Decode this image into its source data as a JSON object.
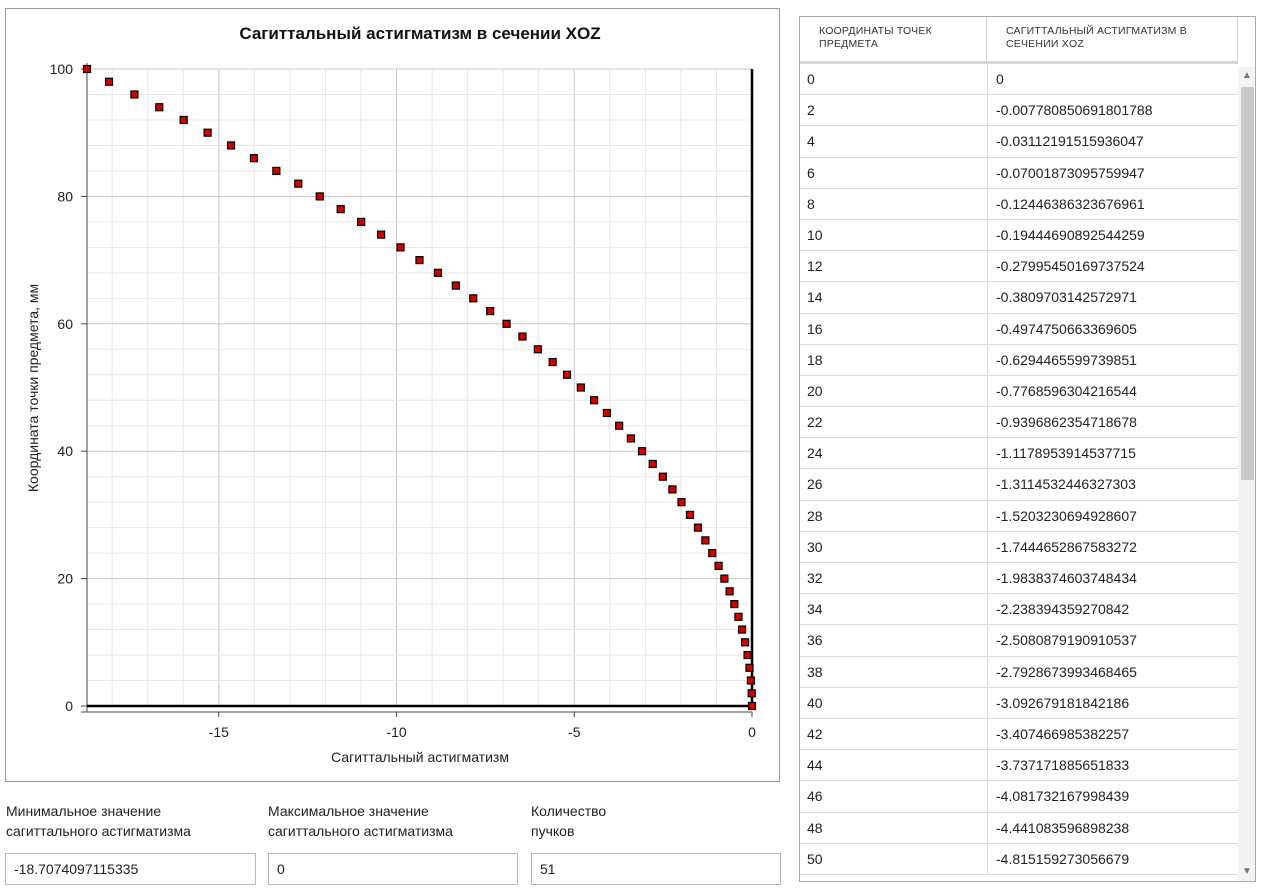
{
  "chart": {
    "title": "Сагиттальный астигматизм в сечении XOZ",
    "xlabel": "Сагиттальный астигматизм",
    "ylabel": "Координата точки предмета, мм"
  },
  "chart_data": {
    "type": "scatter",
    "title": "Сагиттальный астигматизм в сечении XOZ",
    "xlabel": "Сагиттальный астигматизм",
    "ylabel": "Координата точки предмета, мм",
    "xlim": [
      -18.7074097115335,
      0
    ],
    "ylim": [
      0,
      100
    ],
    "xticks": [
      -15,
      -10,
      -5,
      0
    ],
    "yticks": [
      0,
      20,
      40,
      60,
      80,
      100
    ],
    "grid": true,
    "marker_color": "#d40000",
    "points": [
      [
        0,
        0
      ],
      [
        -0.00778,
        2
      ],
      [
        -0.03112,
        4
      ],
      [
        -0.07002,
        6
      ],
      [
        -0.12446,
        8
      ],
      [
        -0.19445,
        10
      ],
      [
        -0.27995,
        12
      ],
      [
        -0.38097,
        14
      ],
      [
        -0.49748,
        16
      ],
      [
        -0.62945,
        18
      ],
      [
        -0.77686,
        20
      ],
      [
        -0.93969,
        22
      ],
      [
        -1.1179,
        24
      ],
      [
        -1.31145,
        26
      ],
      [
        -1.52032,
        28
      ],
      [
        -1.74447,
        30
      ],
      [
        -1.98384,
        32
      ],
      [
        -2.23839,
        34
      ],
      [
        -2.50809,
        36
      ],
      [
        -2.79287,
        38
      ],
      [
        -3.09268,
        40
      ],
      [
        -3.40747,
        42
      ],
      [
        -3.73717,
        44
      ],
      [
        -4.08173,
        46
      ],
      [
        -4.44108,
        48
      ],
      [
        -4.81516,
        50
      ],
      [
        -5.2039,
        52
      ],
      [
        -5.6072,
        54
      ],
      [
        -6.0251,
        56
      ],
      [
        -6.4575,
        58
      ],
      [
        -6.9044,
        60
      ],
      [
        -7.3657,
        62
      ],
      [
        -7.8414,
        64
      ],
      [
        -8.3314,
        66
      ],
      [
        -8.8357,
        68
      ],
      [
        -9.3543,
        70
      ],
      [
        -9.8872,
        72
      ],
      [
        -10.4342,
        74
      ],
      [
        -10.9953,
        76
      ],
      [
        -11.5705,
        78
      ],
      [
        -12.1597,
        80
      ],
      [
        -12.7629,
        82
      ],
      [
        -13.3801,
        84
      ],
      [
        -14.0112,
        86
      ],
      [
        -14.6561,
        88
      ],
      [
        -15.3149,
        90
      ],
      [
        -15.9874,
        92
      ],
      [
        -16.6737,
        94
      ],
      [
        -17.3737,
        96
      ],
      [
        -18.0874,
        98
      ],
      [
        -18.7074,
        100
      ]
    ]
  },
  "stats": {
    "min_label": "Минимальное значение\nсагиттального астигматизма",
    "min_label_l1": "Минимальное значение",
    "min_label_l2": "сагиттального астигматизма",
    "min_value": "-18.7074097115335",
    "max_label_l1": "Максимальное значение",
    "max_label_l2": "сагиттального астигматизма",
    "max_value": "0",
    "count_label_l1": "Количество",
    "count_label_l2": "пучков",
    "count_value": "51"
  },
  "table": {
    "col0_header": "КООРДИНАТЫ ТОЧЕК ПРЕДМЕТА",
    "col1_header": "САГИТТАЛЬНЫЙ АСТИГМАТИЗМ В СЕЧЕНИИ XOZ",
    "rows": [
      [
        "0",
        "0"
      ],
      [
        "2",
        "-0.00778085069180178 8"
      ],
      [
        "4",
        "-0.03112191515936047"
      ],
      [
        "6",
        "-0.07001873095759947"
      ],
      [
        "8",
        "-0.12446386323676961"
      ],
      [
        "10",
        "-0.19444690892544259"
      ],
      [
        "12",
        "-0.27995450169737524"
      ],
      [
        "14",
        "-0.3809703142572971"
      ],
      [
        "16",
        "-0.4974750663369605"
      ],
      [
        "18",
        "-0.6294465599739851"
      ],
      [
        "20",
        "-0.7768596304216544"
      ],
      [
        "22",
        "-0.9396862354718678"
      ],
      [
        "24",
        "-1.1178953914537715"
      ],
      [
        "26",
        "-1.3114532446327303"
      ],
      [
        "28",
        "-1.5203230694928607"
      ],
      [
        "30",
        "-1.7444652867583272"
      ],
      [
        "32",
        "-1.9838374603748434"
      ],
      [
        "34",
        "-2.238394359270842"
      ],
      [
        "36",
        "-2.5080879190910537"
      ],
      [
        "38",
        "-2.7928673993468465"
      ],
      [
        "40",
        "-3.092679181842186"
      ],
      [
        "42",
        "-3.407466985382257"
      ],
      [
        "44",
        "-3.737171885651833"
      ],
      [
        "46",
        "-4.081732167998439"
      ],
      [
        "48",
        "-4.441083596898238"
      ],
      [
        "50",
        "-4.815159273056679"
      ]
    ]
  }
}
